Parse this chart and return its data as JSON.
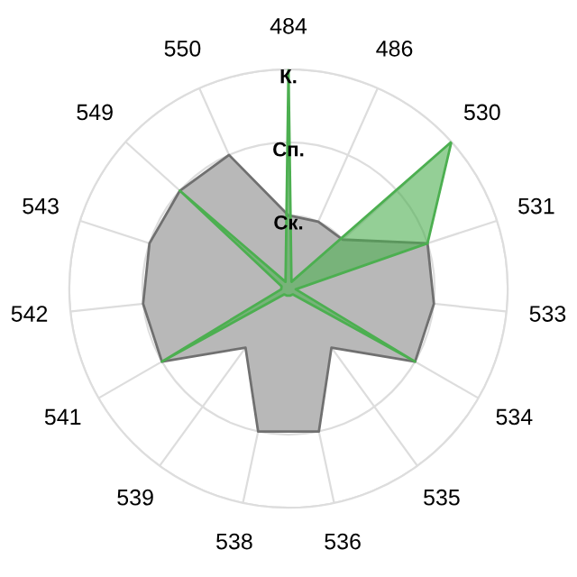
{
  "chart_data": {
    "type": "radar",
    "categories": [
      "484",
      "486",
      "530",
      "531",
      "533",
      "534",
      "535",
      "536",
      "538",
      "539",
      "541",
      "542",
      "543",
      "549",
      "550"
    ],
    "series": [
      {
        "color": "#b8b8b8",
        "values": [
          1,
          1,
          1,
          2,
          2,
          2,
          1,
          2,
          2,
          1,
          2,
          2,
          2,
          2,
          2
        ]
      },
      {
        "color": "#4caf50",
        "values": [
          3,
          0.1,
          3,
          2,
          0.1,
          2,
          0.1,
          0.1,
          0.1,
          0.1,
          2,
          0.1,
          0.1,
          2,
          0.1
        ]
      }
    ],
    "ylim": [
      0,
      3
    ],
    "yticks": [
      {
        "value": 1,
        "label": "Ск."
      },
      {
        "value": 2,
        "label": "Сп."
      },
      {
        "value": 3,
        "label": "К."
      }
    ],
    "grid": true
  }
}
